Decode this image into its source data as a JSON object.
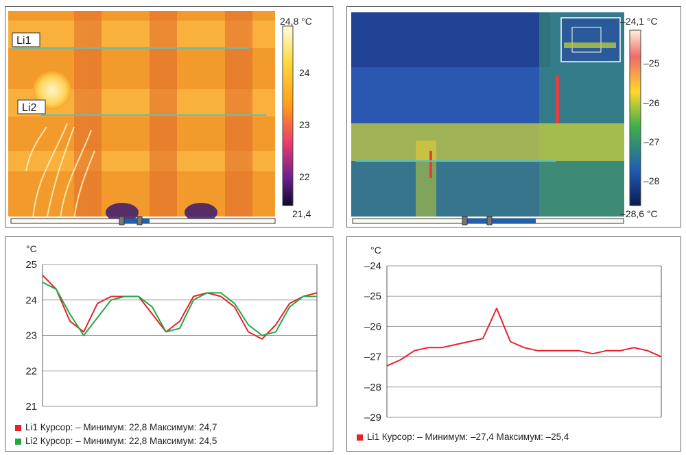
{
  "thermal_left": {
    "scale_max": "24,8 °C",
    "scale_ticks": [
      "24",
      "23",
      "22"
    ],
    "scale_min": "21,4",
    "line_labels": [
      "Li1",
      "Li2"
    ]
  },
  "thermal_right": {
    "scale_max": "–24,1 °C",
    "scale_ticks": [
      "–25",
      "–26",
      "–27",
      "–28"
    ],
    "scale_min": "–28,6 °C"
  },
  "colors": {
    "li1": "#e8202a",
    "li2": "#1fa845",
    "grid": "#9a9a9a",
    "cursor_line": "#4fc3c7"
  },
  "chart_data": [
    {
      "type": "line",
      "ylabel": "°C",
      "ylim": [
        21,
        25
      ],
      "yticks": [
        "25",
        "24",
        "23",
        "22",
        "21"
      ],
      "grid": true,
      "legend_position": "bottom",
      "x": [
        0,
        5,
        10,
        15,
        20,
        25,
        30,
        35,
        40,
        45,
        50,
        55,
        60,
        65,
        70,
        75,
        80,
        85,
        90,
        95,
        100
      ],
      "series": [
        {
          "name": "Li1",
          "values": [
            24.7,
            24.3,
            23.4,
            23.1,
            23.9,
            24.1,
            24.1,
            24.1,
            23.6,
            23.1,
            23.4,
            24.1,
            24.2,
            24.1,
            23.8,
            23.1,
            22.9,
            23.3,
            23.9,
            24.1,
            24.2
          ]
        },
        {
          "name": "Li2",
          "values": [
            24.5,
            24.3,
            23.6,
            23.0,
            23.5,
            24.0,
            24.1,
            24.1,
            23.8,
            23.1,
            23.2,
            24.0,
            24.2,
            24.2,
            23.9,
            23.3,
            23.0,
            23.1,
            23.8,
            24.1,
            24.1
          ]
        }
      ],
      "legend": [
        "Li1 Курсор: – Минимум: 22,8 Максимум: 24,7",
        "Li2 Курсор: – Минимум: 22,8 Максимум: 24,5"
      ]
    },
    {
      "type": "line",
      "ylabel": "°C",
      "ylim": [
        -29,
        -24
      ],
      "yticks": [
        "–24",
        "–25",
        "–26",
        "–27",
        "–28",
        "–29"
      ],
      "grid": true,
      "legend_position": "bottom",
      "x": [
        0,
        5,
        10,
        15,
        20,
        25,
        30,
        35,
        40,
        45,
        50,
        55,
        60,
        65,
        70,
        75,
        80,
        85,
        90,
        95,
        100
      ],
      "series": [
        {
          "name": "Li1",
          "values": [
            -27.3,
            -27.1,
            -26.8,
            -26.7,
            -26.7,
            -26.6,
            -26.5,
            -26.4,
            -25.4,
            -26.5,
            -26.7,
            -26.8,
            -26.8,
            -26.8,
            -26.8,
            -26.9,
            -26.8,
            -26.8,
            -26.7,
            -26.8,
            -27.0
          ]
        }
      ],
      "legend": [
        "Li1 Курсор: – Минимум: –27,4 Максимум: –25,4"
      ]
    }
  ]
}
